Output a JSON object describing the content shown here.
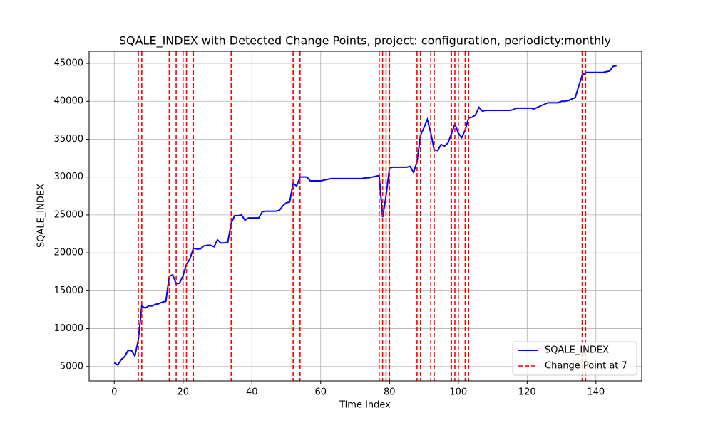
{
  "chart_data": {
    "type": "line",
    "title": "SQALE_INDEX with Detected Change Points, project: configuration, periodicty:monthly",
    "x_label": "Time Index",
    "y_label": "SQALE_INDEX",
    "x": [
      0,
      1,
      2,
      3,
      4,
      5,
      6,
      7,
      8,
      9,
      10,
      11,
      12,
      13,
      14,
      15,
      16,
      17,
      18,
      19,
      20,
      21,
      22,
      23,
      24,
      25,
      26,
      27,
      28,
      29,
      30,
      31,
      32,
      33,
      34,
      35,
      36,
      37,
      38,
      39,
      40,
      41,
      42,
      43,
      44,
      45,
      46,
      47,
      48,
      49,
      50,
      51,
      52,
      53,
      54,
      55,
      56,
      57,
      58,
      59,
      60,
      61,
      62,
      63,
      64,
      65,
      66,
      67,
      68,
      69,
      70,
      71,
      72,
      73,
      74,
      75,
      76,
      77,
      78,
      79,
      80,
      81,
      82,
      83,
      84,
      85,
      86,
      87,
      88,
      89,
      90,
      91,
      92,
      93,
      94,
      95,
      96,
      97,
      98,
      99,
      100,
      101,
      102,
      103,
      104,
      105,
      106,
      107,
      108,
      109,
      110,
      111,
      112,
      113,
      114,
      115,
      116,
      117,
      118,
      119,
      120,
      121,
      122,
      123,
      124,
      125,
      126,
      127,
      128,
      129,
      130,
      131,
      132,
      133,
      134,
      135,
      136,
      137,
      138,
      139,
      140,
      141,
      142,
      143,
      144,
      145,
      146
    ],
    "series": [
      {
        "name": "SQALE_INDEX",
        "color": "#0000ff",
        "values": [
          5500,
          5200,
          5900,
          6300,
          7100,
          7100,
          6400,
          8500,
          13000,
          12700,
          13000,
          13000,
          13200,
          13300,
          13500,
          13600,
          16900,
          17100,
          15900,
          16000,
          17000,
          18500,
          19200,
          20600,
          20500,
          20500,
          20900,
          21000,
          21000,
          20800,
          21700,
          21300,
          21300,
          21400,
          23900,
          24900,
          24900,
          25000,
          24300,
          24600,
          24600,
          24600,
          24600,
          25400,
          25500,
          25500,
          25500,
          25500,
          25600,
          26200,
          26600,
          26700,
          29200,
          28800,
          30000,
          30000,
          30000,
          29500,
          29500,
          29500,
          29500,
          29600,
          29700,
          29800,
          29800,
          29800,
          29800,
          29800,
          29800,
          29800,
          29800,
          29800,
          29800,
          29900,
          29900,
          30000,
          30100,
          30200,
          24700,
          27500,
          31200,
          31300,
          31300,
          31300,
          31300,
          31300,
          31400,
          30600,
          32000,
          35500,
          36500,
          37600,
          35800,
          33600,
          33500,
          34300,
          34100,
          34500,
          35700,
          37000,
          35800,
          35200,
          36200,
          37800,
          37900,
          38200,
          39200,
          38700,
          38800,
          38800,
          38800,
          38800,
          38800,
          38800,
          38800,
          38800,
          38900,
          39100,
          39100,
          39100,
          39100,
          39100,
          39000,
          39200,
          39400,
          39600,
          39800,
          39800,
          39800,
          39800,
          40000,
          40000,
          40100,
          40300,
          40500,
          42000,
          43400,
          43800,
          43800,
          43800,
          43800,
          43800,
          43800,
          43900,
          44000,
          44600,
          44700
        ]
      }
    ],
    "change_points": {
      "name": "Change Point at 7",
      "color": "#ff0000",
      "x": [
        7,
        8,
        16,
        18,
        20,
        21,
        23,
        34,
        52,
        54,
        77,
        78,
        79,
        80,
        88,
        89,
        92,
        93,
        98,
        99,
        100,
        102,
        103,
        136,
        137
      ]
    },
    "xlim": [
      -7.3,
      153.3
    ],
    "ylim": [
      3100,
      46600
    ],
    "xticks": [
      0,
      20,
      40,
      60,
      80,
      100,
      120,
      140
    ],
    "yticks": [
      5000,
      10000,
      15000,
      20000,
      25000,
      30000,
      35000,
      40000,
      45000
    ],
    "grid": true,
    "legend": "lower right"
  }
}
